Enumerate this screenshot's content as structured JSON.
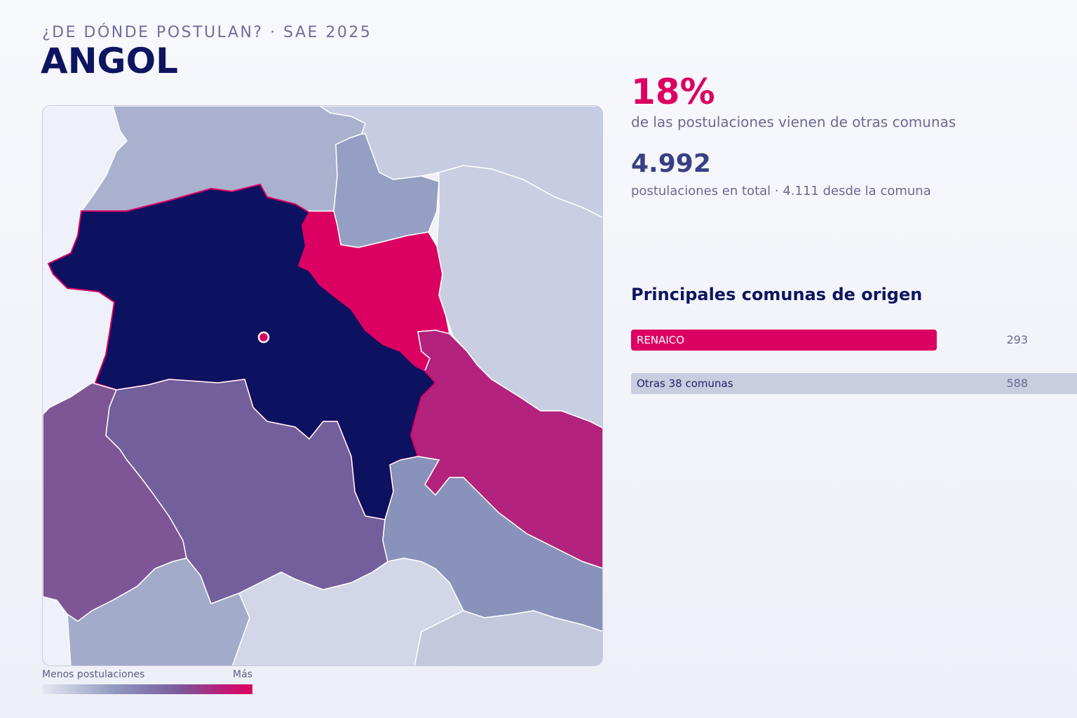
{
  "header": {
    "kicker": "¿DE DÓNDE POSTULAN? · SAE 2025",
    "title": "ANGOL"
  },
  "stats": {
    "external_pct": "18%",
    "external_pct_label": "de las postulaciones vienen de otras comunas",
    "total": "4.992",
    "total_label": "postulaciones en total · 4.111 desde la comuna"
  },
  "origins": {
    "title": "Principales comunas de origen",
    "items": [
      {
        "label": "RENAICO",
        "value": "293"
      },
      {
        "label": "Otras 38 comunas",
        "value": "588"
      }
    ]
  },
  "legend": {
    "min_label": "Menos postulaciones",
    "max_label": "Más"
  },
  "colors": {
    "accent": "#db0062",
    "title": "#0e1560",
    "home_commune": "#0c1160",
    "scale_low": "#e6e8f2",
    "scale_mid": "#7a5a9c",
    "scale_high": "#e0005f"
  }
}
